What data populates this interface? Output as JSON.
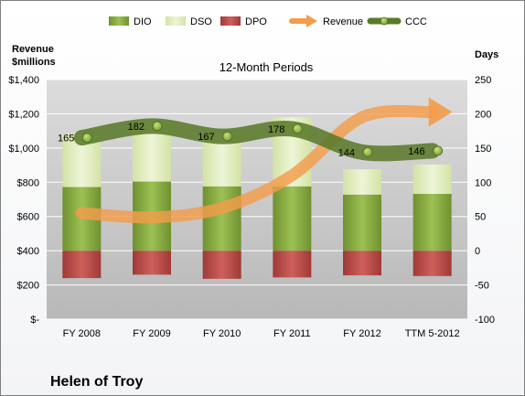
{
  "company": "Helen of Troy",
  "chart_data": {
    "type": "bar",
    "title": "12-Month Periods",
    "left_axis_title": [
      "Revenue",
      "$millions"
    ],
    "right_axis_title": "Days",
    "categories": [
      "FY 2008",
      "FY 2009",
      "FY 2010",
      "FY 2011",
      "FY 2012",
      "TTM 5-2012"
    ],
    "left_ylim": [
      0,
      1400
    ],
    "left_ticks": [
      0,
      200,
      400,
      600,
      800,
      1000,
      1200,
      1400
    ],
    "left_tick_labels": [
      "$-",
      "$200",
      "$400",
      "$600",
      "$800",
      "$1,000",
      "$1,200",
      "$1,400"
    ],
    "right_ylim": [
      -100,
      250
    ],
    "right_ticks": [
      -100,
      -50,
      0,
      50,
      100,
      150,
      200,
      250
    ],
    "right_tick_labels": [
      "-100",
      "-50",
      "0",
      "50",
      "100",
      "150",
      "200",
      "250"
    ],
    "grid": true,
    "legend_position": "top",
    "series": [
      {
        "name": "DIO",
        "kind": "bar",
        "axis": "right",
        "color": "#7da13a",
        "values": [
          93,
          101,
          94,
          94,
          82,
          83
        ]
      },
      {
        "name": "DSO",
        "kind": "bar",
        "axis": "right",
        "color": "#e4efc6",
        "values": [
          78,
          88,
          79,
          101,
          37,
          43
        ]
      },
      {
        "name": "DPO",
        "kind": "bar",
        "axis": "right",
        "color": "#c0504d",
        "values": [
          -40,
          -35,
          -41,
          -39,
          -36,
          -37
        ]
      },
      {
        "name": "Revenue",
        "kind": "line",
        "axis": "left",
        "color": "#f39c4a",
        "values": [
          620,
          595,
          650,
          840,
          1180,
          1210
        ]
      },
      {
        "name": "CCC",
        "kind": "line",
        "axis": "right",
        "color": "#5a7a2a",
        "values": [
          165,
          182,
          167,
          178,
          144,
          146
        ]
      }
    ],
    "ccc_labels": [
      "165",
      "182",
      "167",
      "178",
      "144",
      "146"
    ]
  }
}
